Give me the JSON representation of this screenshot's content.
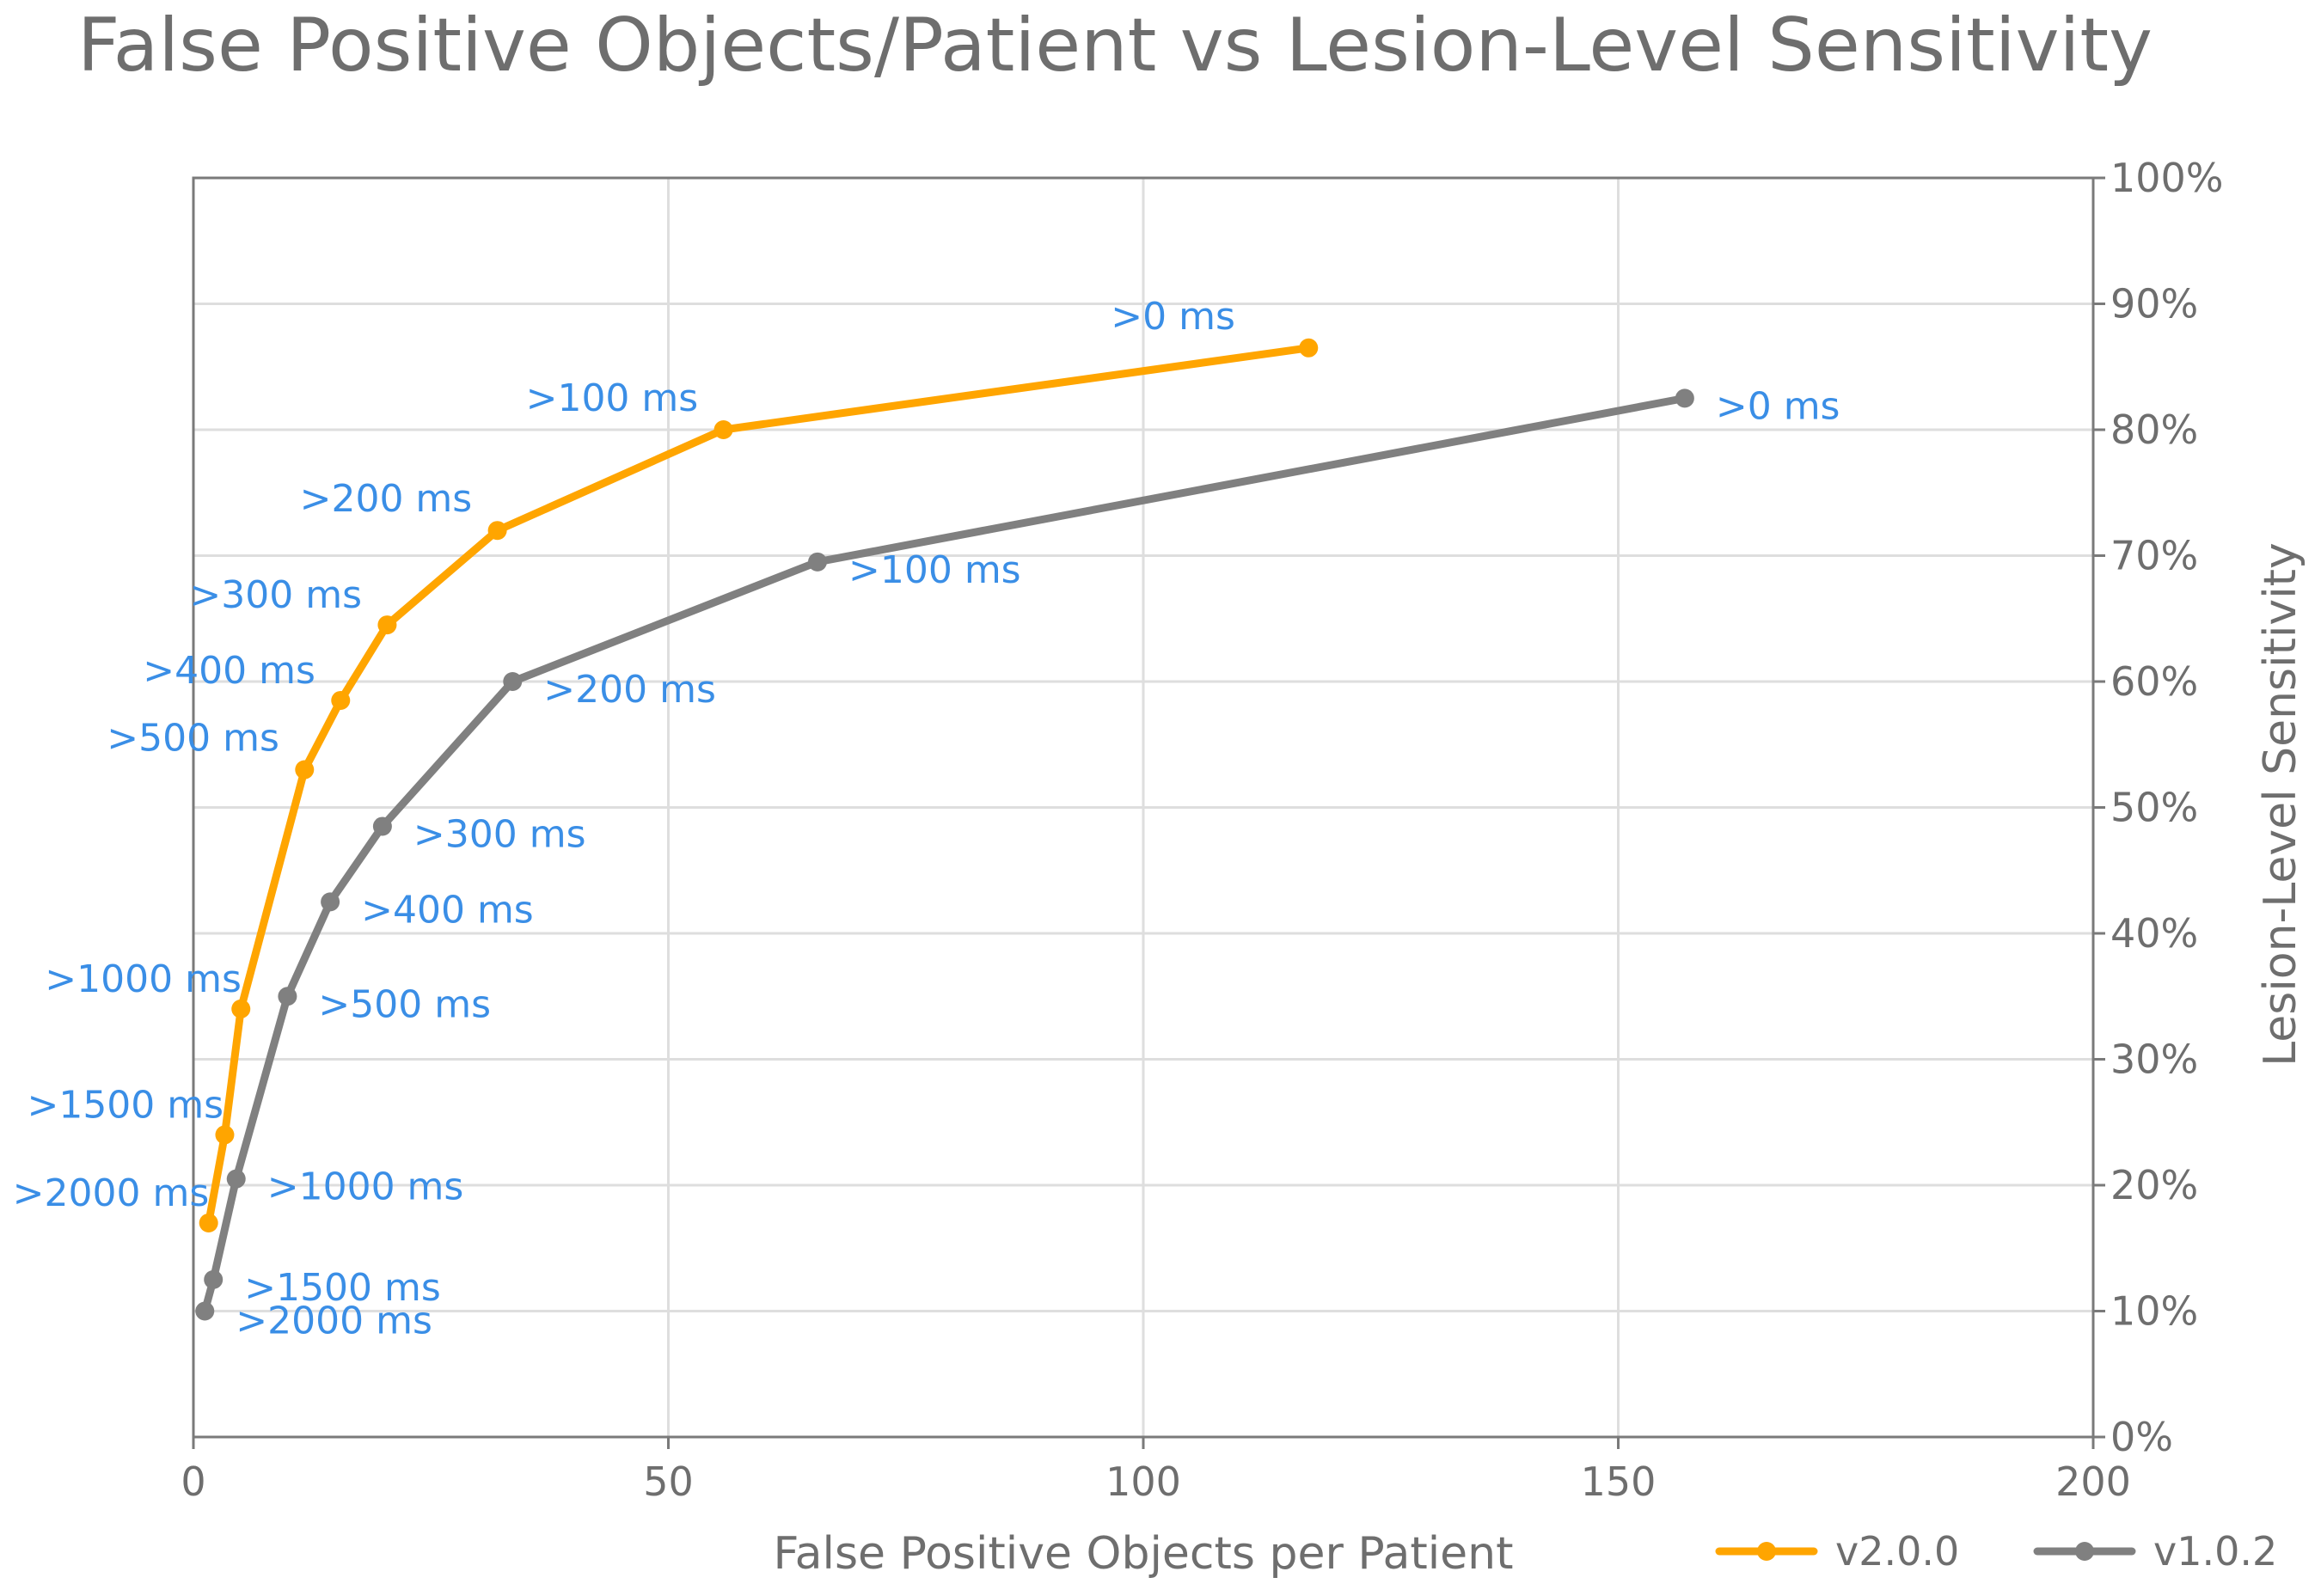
{
  "chart_data": {
    "type": "line",
    "title": "False Positive Objects/Patient vs Lesion-Level Sensitivity",
    "xlabel": "False Positive Objects per Patient",
    "ylabel": "Lesion-Level Sensitivity",
    "xlim": [
      0,
      200
    ],
    "ylim": [
      0,
      100
    ],
    "x_ticks": [
      0,
      50,
      100,
      150,
      200
    ],
    "x_tick_labels": [
      "0",
      "50",
      "100",
      "150",
      "200"
    ],
    "y_ticks": [
      0,
      10,
      20,
      30,
      40,
      50,
      60,
      70,
      80,
      90,
      100
    ],
    "y_tick_labels": [
      "0%",
      "10%",
      "20%",
      "30%",
      "40%",
      "50%",
      "60%",
      "70%",
      "80%",
      "90%",
      "100%"
    ],
    "y_axis_side": "right",
    "grid": true,
    "legend_position": "bottom-right",
    "series": [
      {
        "name": "v2.0.0",
        "color": "#ffa500",
        "points": [
          {
            "x": 1.6,
            "y": 17,
            "label": ">2000 ms"
          },
          {
            "x": 3.3,
            "y": 24,
            "label": ">1500 ms"
          },
          {
            "x": 5.0,
            "y": 34,
            "label": ">1000 ms"
          },
          {
            "x": 11.7,
            "y": 53,
            "label": ">500 ms"
          },
          {
            "x": 15.5,
            "y": 58.5,
            "label": ">400 ms"
          },
          {
            "x": 20.4,
            "y": 64.5,
            "label": ">300 ms"
          },
          {
            "x": 32.0,
            "y": 72,
            "label": ">200 ms"
          },
          {
            "x": 55.8,
            "y": 80,
            "label": ">100 ms"
          },
          {
            "x": 117.4,
            "y": 86.5,
            "label": ">0 ms"
          }
        ]
      },
      {
        "name": "v1.0.2",
        "color": "#808080",
        "points": [
          {
            "x": 1.2,
            "y": 10,
            "label": ">2000 ms"
          },
          {
            "x": 2.1,
            "y": 12.5,
            "label": ">1500 ms"
          },
          {
            "x": 4.5,
            "y": 20.5,
            "label": ">1000 ms"
          },
          {
            "x": 9.9,
            "y": 35,
            "label": ">500 ms"
          },
          {
            "x": 14.4,
            "y": 42.5,
            "label": ">400 ms"
          },
          {
            "x": 19.9,
            "y": 48.5,
            "label": ">300 ms"
          },
          {
            "x": 33.6,
            "y": 60,
            "label": ">200 ms"
          },
          {
            "x": 65.7,
            "y": 69.5,
            "label": ">100 ms"
          },
          {
            "x": 157.0,
            "y": 82.5,
            "label": ">0 ms"
          }
        ]
      }
    ]
  }
}
